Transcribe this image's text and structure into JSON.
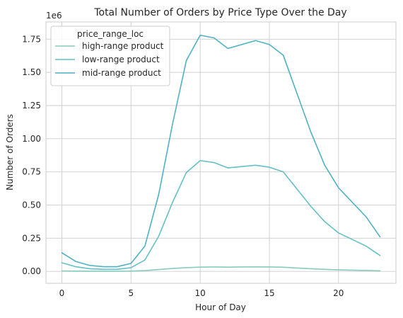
{
  "chart_data": {
    "type": "line",
    "title": "Total Number of Orders by Price Type Over the Day",
    "xlabel": "Hour of Day",
    "ylabel": "Number of Orders",
    "y_offset_label": "1e6",
    "xlim": [
      -1.15,
      24.15
    ],
    "ylim": [
      -90000,
      1880000
    ],
    "xticks": [
      0,
      5,
      10,
      15,
      20
    ],
    "xtick_labels": [
      "0",
      "5",
      "10",
      "15",
      "20"
    ],
    "yticks": [
      0,
      250000,
      500000,
      750000,
      1000000,
      1250000,
      1500000,
      1750000
    ],
    "ytick_labels": [
      "0.00",
      "0.25",
      "0.50",
      "0.75",
      "1.00",
      "1.25",
      "1.50",
      "1.75"
    ],
    "grid": true,
    "legend": {
      "title": "price_range_loc",
      "position": "top-left"
    },
    "x": [
      0,
      1,
      2,
      3,
      4,
      5,
      6,
      7,
      8,
      9,
      10,
      11,
      12,
      13,
      14,
      15,
      16,
      17,
      18,
      19,
      20,
      21,
      22,
      23
    ],
    "series": [
      {
        "name": "high-range product",
        "color": "#86cbbd",
        "values": [
          3000,
          2000,
          1000,
          1000,
          1000,
          2000,
          6000,
          14000,
          22000,
          28000,
          32000,
          33000,
          32000,
          33000,
          34000,
          33000,
          31000,
          25000,
          20000,
          15000,
          11000,
          9000,
          7000,
          4000
        ]
      },
      {
        "name": "low-range product",
        "color": "#64c0c4",
        "values": [
          65000,
          35000,
          20000,
          15000,
          15000,
          28000,
          85000,
          265000,
          520000,
          745000,
          835000,
          820000,
          780000,
          790000,
          800000,
          785000,
          750000,
          620000,
          490000,
          375000,
          290000,
          240000,
          190000,
          120000
        ]
      },
      {
        "name": "mid-range product",
        "color": "#4eb1c4",
        "values": [
          140000,
          75000,
          45000,
          35000,
          35000,
          60000,
          190000,
          580000,
          1110000,
          1590000,
          1780000,
          1760000,
          1680000,
          1710000,
          1740000,
          1710000,
          1630000,
          1340000,
          1050000,
          800000,
          630000,
          520000,
          410000,
          260000
        ]
      }
    ]
  }
}
